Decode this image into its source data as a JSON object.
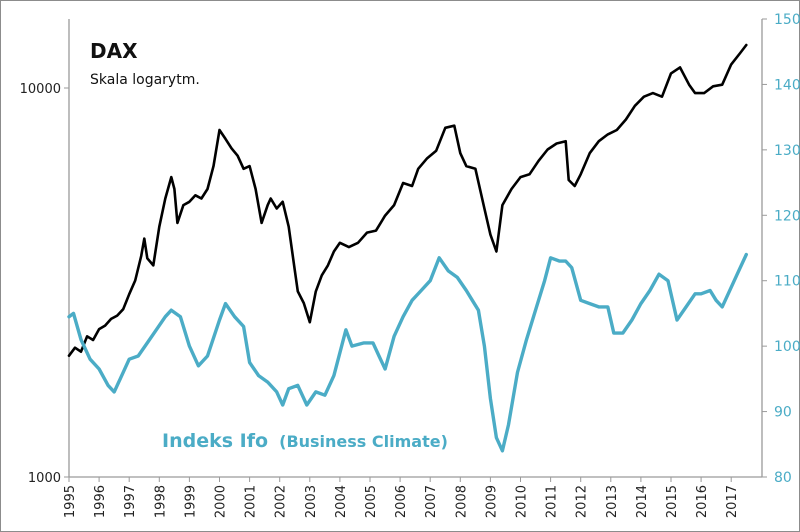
{
  "chart_data": {
    "type": "line",
    "title": "DAX",
    "subtitle": "Skala logarytm.",
    "x_ticks": [
      "1995",
      "1996",
      "1997",
      "1998",
      "1999",
      "2000",
      "2001",
      "2002",
      "2003",
      "2004",
      "2005",
      "2006",
      "2007",
      "2008",
      "2009",
      "2010",
      "2011",
      "2012",
      "2013",
      "2014",
      "2015",
      "2016",
      "2017"
    ],
    "left_axis": {
      "scale": "log",
      "ticks": [
        "1000",
        "10000"
      ],
      "range": [
        1000,
        15000
      ]
    },
    "right_axis": {
      "scale": "linear",
      "ticks": [
        "80",
        "90",
        "100",
        "110",
        "120",
        "130",
        "140",
        "150"
      ],
      "range": [
        80,
        150
      ]
    },
    "colors": {
      "dax": "#000000",
      "ifo": "#4bacc6"
    },
    "series": [
      {
        "name": "DAX",
        "axis": "left",
        "x": [
          1995.0,
          1995.2,
          1995.4,
          1995.6,
          1995.8,
          1996.0,
          1996.2,
          1996.4,
          1996.6,
          1996.8,
          1997.0,
          1997.2,
          1997.4,
          1997.5,
          1997.6,
          1997.8,
          1998.0,
          1998.2,
          1998.4,
          1998.5,
          1998.6,
          1998.8,
          1999.0,
          1999.2,
          1999.4,
          1999.6,
          1999.8,
          2000.0,
          2000.2,
          2000.4,
          2000.6,
          2000.8,
          2001.0,
          2001.2,
          2001.4,
          2001.6,
          2001.7,
          2001.9,
          2002.1,
          2002.3,
          2002.5,
          2002.6,
          2002.8,
          2003.0,
          2003.2,
          2003.4,
          2003.6,
          2003.8,
          2004.0,
          2004.3,
          2004.6,
          2004.9,
          2005.2,
          2005.5,
          2005.8,
          2006.1,
          2006.4,
          2006.6,
          2006.9,
          2007.2,
          2007.5,
          2007.8,
          2008.0,
          2008.2,
          2008.5,
          2008.8,
          2009.0,
          2009.2,
          2009.4,
          2009.7,
          2010.0,
          2010.3,
          2010.6,
          2010.9,
          2011.2,
          2011.5,
          2011.6,
          2011.8,
          2012.0,
          2012.3,
          2012.6,
          2012.9,
          2013.2,
          2013.5,
          2013.8,
          2014.1,
          2014.4,
          2014.7,
          2015.0,
          2015.3,
          2015.6,
          2015.8,
          2016.1,
          2016.4,
          2016.7,
          2017.0,
          2017.3,
          2017.5
        ],
        "y": [
          2050,
          2150,
          2100,
          2300,
          2250,
          2400,
          2450,
          2550,
          2600,
          2700,
          2950,
          3200,
          3700,
          4100,
          3650,
          3500,
          4400,
          5200,
          5900,
          5500,
          4500,
          5000,
          5100,
          5300,
          5200,
          5500,
          6300,
          7800,
          7400,
          7000,
          6700,
          6200,
          6300,
          5500,
          4500,
          5000,
          5200,
          4900,
          5100,
          4400,
          3400,
          3000,
          2800,
          2500,
          3000,
          3300,
          3500,
          3800,
          4000,
          3900,
          4000,
          4250,
          4300,
          4700,
          5000,
          5700,
          5600,
          6200,
          6600,
          6900,
          7900,
          8000,
          6800,
          6300,
          6200,
          4900,
          4200,
          3800,
          5000,
          5500,
          5900,
          6000,
          6500,
          6950,
          7200,
          7300,
          5800,
          5600,
          6000,
          6800,
          7300,
          7600,
          7800,
          8300,
          9000,
          9500,
          9700,
          9500,
          10900,
          11300,
          10200,
          9700,
          9700,
          10100,
          10200,
          11500,
          12300,
          12900
        ],
        "labels": []
      },
      {
        "name": "Indeks Ifo (Business Climate)",
        "axis": "right",
        "x": [
          1995.0,
          1995.15,
          1995.4,
          1995.7,
          1996.0,
          1996.3,
          1996.5,
          1996.7,
          1997.0,
          1997.3,
          1997.6,
          1997.9,
          1998.2,
          1998.4,
          1998.7,
          1999.0,
          1999.3,
          1999.6,
          2000.0,
          2000.2,
          2000.5,
          2000.8,
          2001.0,
          2001.3,
          2001.6,
          2001.9,
          2002.1,
          2002.3,
          2002.6,
          2002.9,
          2003.2,
          2003.5,
          2003.8,
          2004.0,
          2004.2,
          2004.4,
          2004.8,
          2005.1,
          2005.3,
          2005.5,
          2005.8,
          2006.1,
          2006.4,
          2006.7,
          2007.0,
          2007.3,
          2007.6,
          2007.9,
          2008.2,
          2008.4,
          2008.6,
          2008.8,
          2009.0,
          2009.2,
          2009.4,
          2009.6,
          2009.9,
          2010.2,
          2010.5,
          2010.8,
          2011.0,
          2011.3,
          2011.5,
          2011.7,
          2012.0,
          2012.3,
          2012.6,
          2012.9,
          2013.1,
          2013.4,
          2013.7,
          2014.0,
          2014.3,
          2014.6,
          2014.9,
          2015.2,
          2015.5,
          2015.8,
          2016.0,
          2016.3,
          2016.5,
          2016.7,
          2017.0,
          2017.2,
          2017.5
        ],
        "y": [
          104.5,
          105,
          101,
          98,
          96.5,
          94,
          93,
          95,
          98,
          98.5,
          100.5,
          102.5,
          104.5,
          105.5,
          104.5,
          100,
          97,
          98.5,
          104,
          106.5,
          104.5,
          103,
          97.5,
          95.5,
          94.5,
          93,
          91,
          93.5,
          94,
          91,
          93,
          92.5,
          95.5,
          99,
          102.5,
          100,
          100.5,
          100.5,
          98.5,
          96.5,
          101.5,
          104.5,
          107,
          108.5,
          110,
          113.5,
          111.5,
          110.5,
          108.5,
          107,
          105.5,
          100,
          92,
          86,
          84,
          88,
          96,
          101,
          105.5,
          110,
          113.5,
          113,
          113,
          112,
          107,
          106.5,
          106,
          106,
          102,
          102,
          104,
          106.5,
          108.5,
          111,
          110,
          104,
          106,
          108,
          108,
          108.5,
          107,
          106,
          109,
          111,
          114
        ],
        "labels": []
      }
    ],
    "annotations": {
      "ifo_label_main": "Indeks Ifo",
      "ifo_label_sub": "(Business Climate)"
    },
    "grid": false,
    "legend": "none"
  }
}
